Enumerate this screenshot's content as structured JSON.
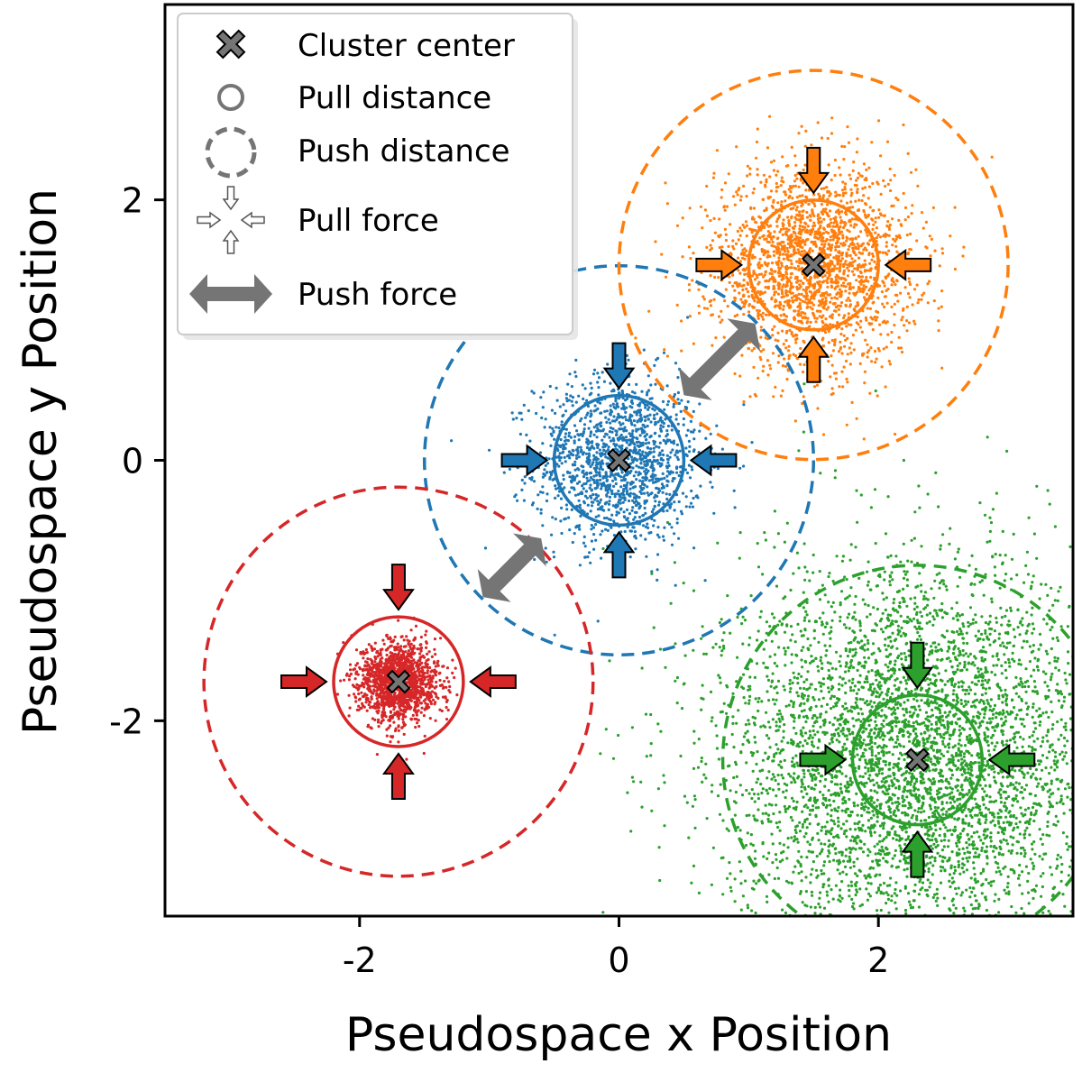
{
  "chart_data": {
    "type": "scatter",
    "title": "",
    "xlabel": "Pseudospace x Position",
    "ylabel": "Pseudospace y Position",
    "xlim": [
      -3.5,
      3.5
    ],
    "ylim": [
      -3.5,
      3.5
    ],
    "x_ticks": [
      -2,
      0,
      2
    ],
    "y_ticks": [
      -2,
      0,
      2
    ],
    "x_tick_labels": [
      "-2",
      "0",
      "2"
    ],
    "y_tick_labels": [
      "-2",
      "0",
      "2"
    ],
    "grid": false,
    "legend": {
      "placement": "top-left",
      "entries": [
        {
          "label": "Cluster center",
          "icon": "x-marker-icon"
        },
        {
          "label": "Pull distance",
          "icon": "solid-circle-icon"
        },
        {
          "label": "Push distance",
          "icon": "dashed-circle-icon"
        },
        {
          "label": "Pull force",
          "icon": "inward-arrows-icon"
        },
        {
          "label": "Push force",
          "icon": "double-arrow-icon"
        }
      ]
    },
    "series": [
      {
        "color": "#1f77b4",
        "center": [
          0,
          0
        ],
        "pull_radius": 0.5,
        "push_radius": 1.5,
        "spread": 0.32,
        "n_points": 1500
      },
      {
        "color": "#ff7f0e",
        "center": [
          1.5,
          1.5
        ],
        "pull_radius": 0.5,
        "push_radius": 1.5,
        "spread": 0.38,
        "n_points": 2200
      },
      {
        "color": "#2ca02c",
        "center": [
          2.3,
          -2.3
        ],
        "pull_radius": 0.5,
        "push_radius": 1.5,
        "spread": 0.75,
        "n_points": 5000
      },
      {
        "color": "#d62728",
        "center": [
          -1.7,
          -1.7
        ],
        "pull_radius": 0.5,
        "push_radius": 1.5,
        "spread": 0.15,
        "n_points": 1500
      }
    ],
    "push_forces": [
      {
        "from": [
          -1.05,
          -1.05
        ],
        "to": [
          -0.6,
          -0.6
        ]
      },
      {
        "from": [
          0.5,
          0.5
        ],
        "to": [
          1.05,
          1.05
        ]
      }
    ],
    "colors": {
      "push_force": "#757575",
      "legend_marker": "#757575",
      "axis": "#000000"
    }
  }
}
